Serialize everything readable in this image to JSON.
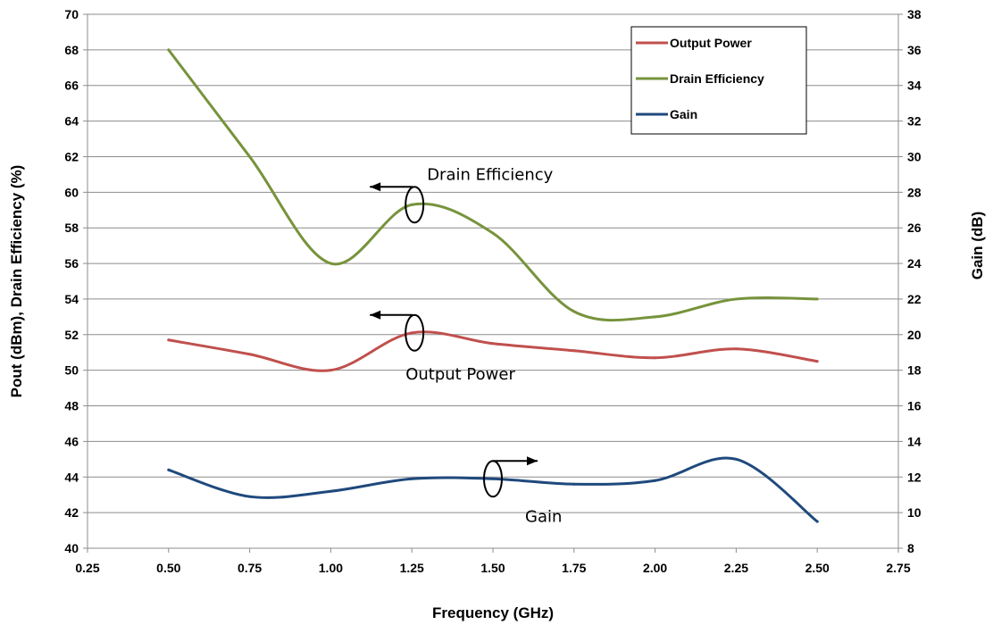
{
  "chart_data": {
    "type": "line",
    "title": "",
    "xlabel": "Frequency (GHz)",
    "ylabel": "Pout (dBm), Drain Efficiency (%)",
    "y2label": "Gain (dB)",
    "xlim": [
      0.25,
      2.75
    ],
    "ylim": [
      40,
      70
    ],
    "y2lim": [
      8,
      38
    ],
    "grid": true,
    "legend_position": "top-right",
    "x_ticks": [
      "0.25",
      "0.50",
      "0.75",
      "1.00",
      "1.25",
      "1.50",
      "1.75",
      "2.00",
      "2.25",
      "2.50",
      "2.75"
    ],
    "y_ticks": [
      "40",
      "42",
      "44",
      "46",
      "48",
      "50",
      "52",
      "54",
      "56",
      "58",
      "60",
      "62",
      "64",
      "66",
      "68",
      "70"
    ],
    "y2_ticks": [
      "8",
      "10",
      "12",
      "14",
      "16",
      "18",
      "20",
      "22",
      "24",
      "26",
      "28",
      "30",
      "32",
      "34",
      "36",
      "38"
    ],
    "series": [
      {
        "name": "Output Power",
        "axis": "left",
        "color": "#C0504D",
        "x": [
          0.5,
          0.75,
          1.0,
          1.25,
          1.5,
          1.75,
          2.0,
          2.25,
          2.5
        ],
        "values": [
          51.7,
          50.9,
          50.0,
          52.1,
          51.5,
          51.1,
          50.7,
          51.2,
          50.5
        ]
      },
      {
        "name": "Drain Efficiency",
        "axis": "left",
        "color": "#77933C",
        "x": [
          0.5,
          0.75,
          1.0,
          1.25,
          1.5,
          1.75,
          2.0,
          2.25,
          2.5
        ],
        "values": [
          68.0,
          62.0,
          56.0,
          59.3,
          57.7,
          53.3,
          53.0,
          54.0,
          54.0
        ]
      },
      {
        "name": "Gain",
        "axis": "right",
        "color": "#1F497D",
        "x": [
          0.5,
          0.75,
          1.0,
          1.25,
          1.5,
          1.75,
          2.0,
          2.25,
          2.5
        ],
        "values": [
          12.4,
          10.9,
          11.2,
          11.9,
          11.9,
          11.6,
          11.8,
          13.0,
          9.5
        ]
      }
    ],
    "annotations": [
      {
        "text": "Drain Efficiency",
        "arrow": "left",
        "series": "Drain Efficiency",
        "x": 1.25,
        "y": 59.3
      },
      {
        "text": "Output Power",
        "arrow": "left",
        "series": "Output Power",
        "x": 1.25,
        "y": 52.1
      },
      {
        "text": "Gain",
        "arrow": "right",
        "series": "Gain",
        "x": 1.5,
        "y": 11.9
      }
    ]
  }
}
